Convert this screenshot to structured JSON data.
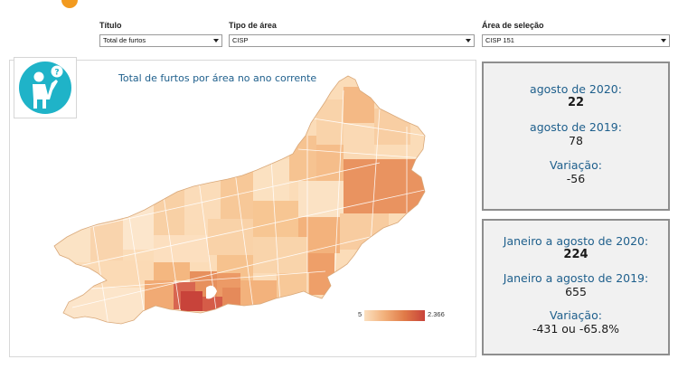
{
  "filters": [
    {
      "label": "Título",
      "value": "Total de furtos"
    },
    {
      "label": "Tipo de área",
      "value": "CISP"
    },
    {
      "label": "Área de seleção",
      "value": "CISP 151"
    }
  ],
  "map": {
    "title": "Total de furtos por área no ano corrente",
    "legend_min": "5",
    "legend_max": "2.366",
    "scale_colors": [
      "#fbe0c0",
      "#f2b07a",
      "#e07a48",
      "#c8433a"
    ]
  },
  "help_icon": "person-question-icon",
  "stats_month": {
    "current_label": "agosto de 2020:",
    "current_value": "22",
    "previous_label": "agosto de 2019:",
    "previous_value": "78",
    "variation_label": "Variação:",
    "variation_value": "-56"
  },
  "stats_ytd": {
    "current_label": "Janeiro a agosto de 2020:",
    "current_value": "224",
    "previous_label": "Janeiro a agosto de 2019:",
    "previous_value": "655",
    "variation_label": "Variação:",
    "variation_value": "-431 ou -65.8%"
  },
  "colors": {
    "accent_text": "#1e5f8c",
    "help_icon_bg": "#1fb3c8",
    "logo": "#f29a1f"
  }
}
